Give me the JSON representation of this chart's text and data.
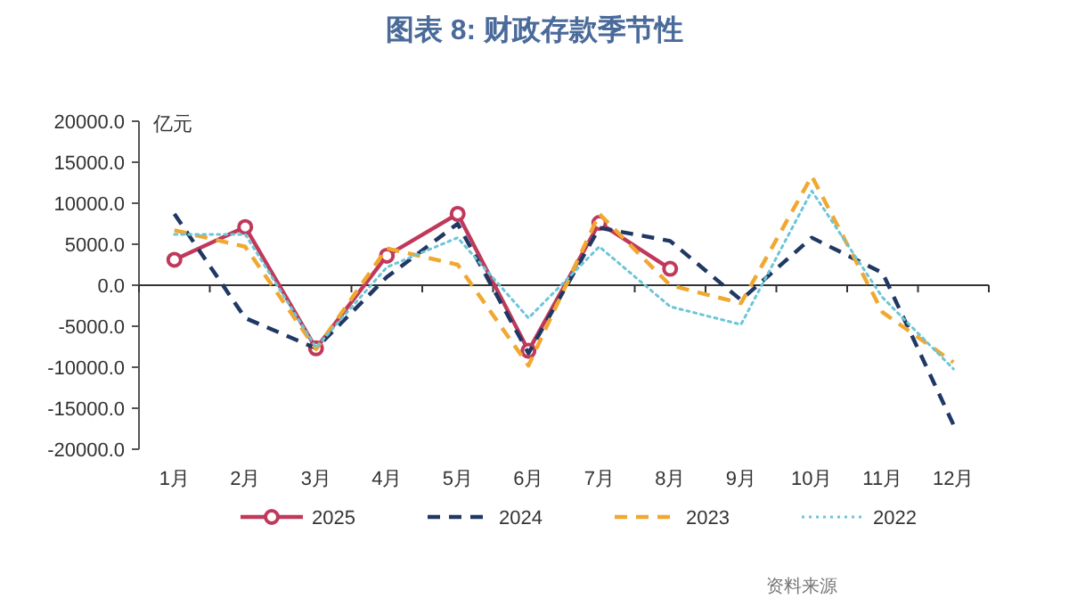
{
  "chart_data": {
    "type": "line",
    "title": "图表 8: 财政存款季节性",
    "ylabel": "亿元",
    "categories": [
      "1月",
      "2月",
      "3月",
      "4月",
      "5月",
      "6月",
      "7月",
      "8月",
      "9月",
      "10月",
      "11月",
      "12月"
    ],
    "series": [
      {
        "name": "2025",
        "color": "#c0395a",
        "marker": "circle",
        "line_style": "solid",
        "values": [
          3100,
          7100,
          -7700,
          3600,
          8700,
          -8000,
          7600,
          2000,
          null,
          null,
          null,
          null
        ]
      },
      {
        "name": "2024",
        "color": "#1f3864",
        "marker": "none",
        "line_style": "dashed",
        "values": [
          8700,
          -4000,
          -7700,
          1000,
          7500,
          -8300,
          7000,
          5400,
          -1800,
          5800,
          1500,
          -17000
        ]
      },
      {
        "name": "2023",
        "color": "#f0a830",
        "marker": "none",
        "line_style": "dashed",
        "values": [
          6700,
          4700,
          -7800,
          4500,
          2500,
          -9800,
          8700,
          0,
          -2200,
          13300,
          -3300,
          -9400
        ]
      },
      {
        "name": "2022",
        "color": "#6cc5d8",
        "marker": "none",
        "line_style": "dotted",
        "values": [
          6200,
          6200,
          -7600,
          2200,
          5800,
          -4000,
          4700,
          -2600,
          -4800,
          11500,
          -1500,
          -10200
        ]
      }
    ],
    "ylim": [
      -20000,
      20000
    ],
    "yticks": [
      {
        "value": -20000,
        "label": "-20000.0"
      },
      {
        "value": -15000,
        "label": "-15000.0"
      },
      {
        "value": -10000,
        "label": "-10000.0"
      },
      {
        "value": -5000,
        "label": "-5000.0"
      },
      {
        "value": 0,
        "label": "0.0"
      },
      {
        "value": 5000,
        "label": "5000.0"
      },
      {
        "value": 10000,
        "label": "10000.0"
      },
      {
        "value": 15000,
        "label": "15000.0"
      },
      {
        "value": 20000,
        "label": "20000.0"
      }
    ],
    "legend": "bottom",
    "annotations": [
      "资料来源"
    ]
  }
}
